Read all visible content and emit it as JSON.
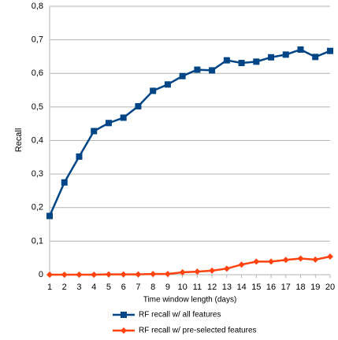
{
  "chart_data": {
    "type": "line",
    "x_label": "Time window length (days)",
    "y_label": "Recall",
    "x": [
      1,
      2,
      3,
      4,
      5,
      6,
      7,
      8,
      9,
      10,
      11,
      12,
      13,
      14,
      15,
      16,
      17,
      18,
      19,
      20
    ],
    "series": [
      {
        "name": "RF recall w/ all features",
        "color": "#004586",
        "marker": "square",
        "values": [
          0.175,
          0.275,
          0.352,
          0.428,
          0.452,
          0.468,
          0.502,
          0.548,
          0.567,
          0.592,
          0.611,
          0.609,
          0.639,
          0.631,
          0.635,
          0.648,
          0.656,
          0.671,
          0.649,
          0.667
        ]
      },
      {
        "name": "RF recall w/ pre-selected features",
        "color": "#ff420e",
        "marker": "diamond",
        "values": [
          0,
          0,
          0,
          0,
          0.001,
          0.001,
          0.001,
          0.002,
          0.002,
          0.007,
          0.009,
          0.012,
          0.018,
          0.03,
          0.039,
          0.039,
          0.044,
          0.048,
          0.045,
          0.054
        ]
      }
    ],
    "xlim": [
      1,
      20
    ],
    "xticks": [
      1,
      2,
      3,
      4,
      5,
      6,
      7,
      8,
      9,
      10,
      11,
      12,
      13,
      14,
      15,
      16,
      17,
      18,
      19,
      20
    ],
    "ylim": [
      0,
      0.8
    ],
    "yticks": [
      0,
      {
        "value": 0.1,
        "label": "0,1"
      },
      {
        "value": 0.2,
        "label": "0,2"
      },
      {
        "value": 0.3,
        "label": "0,3"
      },
      {
        "value": 0.4,
        "label": "0,4"
      },
      {
        "value": 0.5,
        "label": "0,5"
      },
      {
        "value": 0.6,
        "label": "0,6"
      },
      {
        "value": 0.7,
        "label": "0,7"
      },
      {
        "value": 0.8,
        "label": "0,8"
      }
    ],
    "grid": true,
    "legend": "bottom"
  }
}
